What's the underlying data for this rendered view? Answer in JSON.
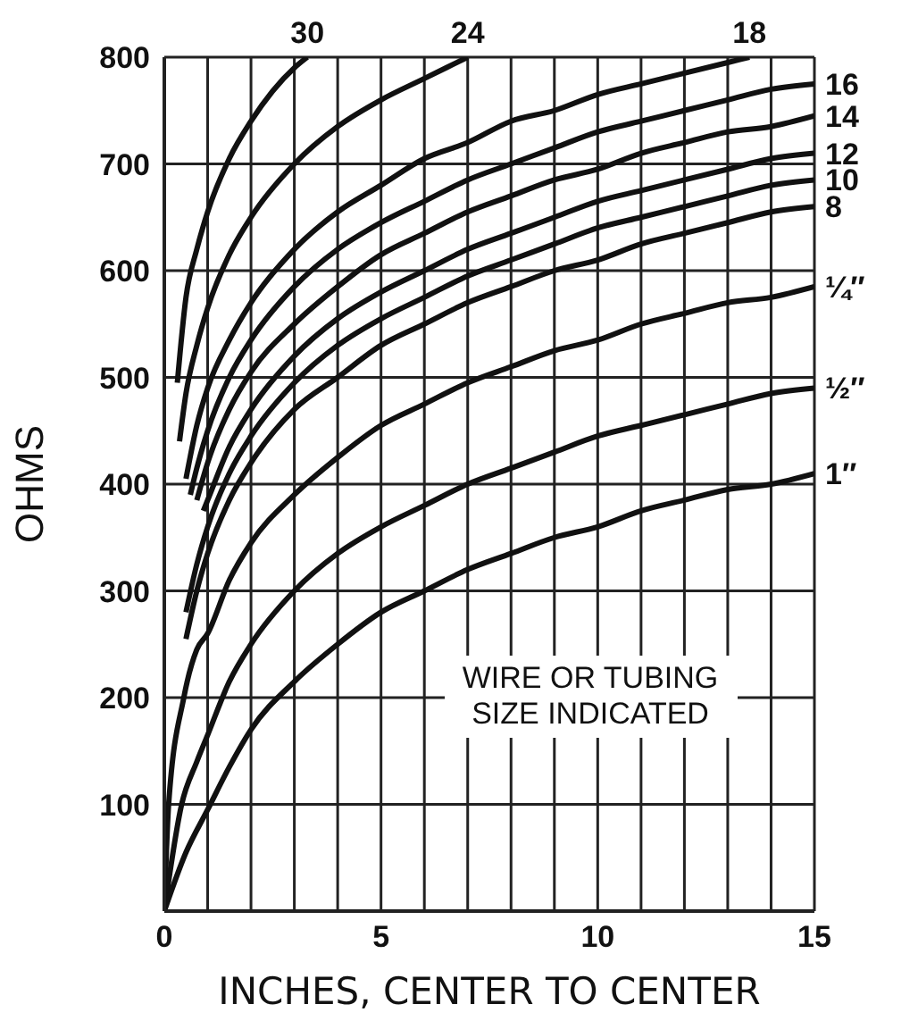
{
  "chart_data": {
    "type": "line",
    "xlabel": "INCHES, CENTER TO CENTER",
    "ylabel": "OHMS",
    "xlim": [
      0,
      15
    ],
    "ylim": [
      0,
      800
    ],
    "xticks": [
      0,
      {
        "value": 1,
        "label": null
      },
      {
        "value": 2,
        "label": null
      },
      {
        "value": 3,
        "label": null
      },
      {
        "value": 4,
        "label": null
      },
      5,
      {
        "value": 6,
        "label": null
      },
      {
        "value": 7,
        "label": null
      },
      {
        "value": 8,
        "label": null
      },
      {
        "value": 9,
        "label": null
      },
      10,
      {
        "value": 11,
        "label": null
      },
      {
        "value": 12,
        "label": null
      },
      {
        "value": 13,
        "label": null
      },
      {
        "value": 14,
        "label": null
      },
      15
    ],
    "yticks": [
      {
        "value": 0,
        "label": null
      },
      100,
      200,
      300,
      400,
      500,
      600,
      700,
      800
    ],
    "grid": true,
    "legend": false,
    "marker": "none",
    "line_style": "solid",
    "annotations": [
      "WIRE OR TUBING SIZE INDICATED"
    ],
    "series": [
      {
        "name": "30",
        "color": "#111111",
        "x": [
          0.3,
          0.5,
          0.75,
          1,
          1.5,
          2,
          3,
          3.3
        ],
        "values": [
          495,
          575,
          620,
          655,
          705,
          740,
          790,
          800
        ]
      },
      {
        "name": "24",
        "color": "#111111",
        "x": [
          0.35,
          0.5,
          0.75,
          1,
          1.5,
          2,
          3,
          4,
          5,
          6,
          7
        ],
        "values": [
          440,
          485,
          530,
          565,
          615,
          650,
          700,
          735,
          760,
          780,
          800
        ]
      },
      {
        "name": "18",
        "color": "#111111",
        "x": [
          0.5,
          0.75,
          1,
          1.5,
          2,
          3,
          4,
          5,
          6,
          7,
          8,
          9,
          10,
          11,
          12,
          13,
          13.5
        ],
        "values": [
          405,
          455,
          490,
          535,
          570,
          620,
          655,
          680,
          705,
          720,
          740,
          750,
          765,
          775,
          785,
          795,
          800
        ]
      },
      {
        "name": "16",
        "color": "#111111",
        "x": [
          0.6,
          0.75,
          1,
          1.5,
          2,
          3,
          4,
          5,
          6,
          7,
          8,
          9,
          10,
          11,
          12,
          13,
          14,
          15
        ],
        "values": [
          390,
          415,
          450,
          500,
          535,
          585,
          620,
          645,
          665,
          685,
          700,
          715,
          730,
          740,
          750,
          760,
          770,
          775
        ]
      },
      {
        "name": "14",
        "color": "#111111",
        "x": [
          0.75,
          1,
          1.5,
          2,
          3,
          4,
          5,
          6,
          7,
          8,
          9,
          10,
          11,
          12,
          13,
          14,
          15
        ],
        "values": [
          385,
          420,
          470,
          505,
          550,
          585,
          615,
          635,
          655,
          670,
          685,
          695,
          710,
          720,
          730,
          735,
          745
        ]
      },
      {
        "name": "12",
        "color": "#111111",
        "x": [
          0.9,
          1,
          1.5,
          2,
          3,
          4,
          5,
          6,
          7,
          8,
          9,
          10,
          11,
          12,
          13,
          14,
          15
        ],
        "values": [
          375,
          385,
          435,
          470,
          520,
          555,
          580,
          600,
          620,
          635,
          650,
          665,
          675,
          685,
          695,
          705,
          710
        ]
      },
      {
        "name": "10",
        "color": "#111111",
        "x": [
          0.5,
          0.75,
          1,
          1.5,
          2,
          3,
          4,
          5,
          6,
          7,
          8,
          9,
          10,
          11,
          12,
          13,
          14,
          15
        ],
        "values": [
          280,
          325,
          360,
          410,
          445,
          495,
          530,
          555,
          575,
          595,
          610,
          625,
          640,
          650,
          660,
          670,
          680,
          685
        ]
      },
      {
        "name": "8",
        "color": "#111111",
        "x": [
          0.5,
          0.75,
          1,
          1.5,
          2,
          3,
          4,
          5,
          6,
          7,
          8,
          9,
          10,
          11,
          12,
          13,
          14,
          15
        ],
        "values": [
          255,
          300,
          335,
          385,
          420,
          470,
          500,
          530,
          550,
          570,
          585,
          600,
          610,
          625,
          635,
          645,
          655,
          660
        ]
      },
      {
        "name": "¼″",
        "color": "#111111",
        "x": [
          0,
          0.1,
          0.45,
          0.75,
          1,
          1.5,
          2,
          3,
          4,
          5,
          6,
          7,
          8,
          9,
          10,
          11,
          12,
          13,
          14,
          15
        ],
        "values": [
          0,
          100,
          200,
          245,
          260,
          310,
          345,
          390,
          425,
          455,
          475,
          495,
          510,
          525,
          535,
          550,
          560,
          570,
          575,
          585
        ]
      },
      {
        "name": "½″",
        "color": "#111111",
        "x": [
          0,
          0.4,
          0.75,
          1,
          1.5,
          2,
          3,
          4,
          5,
          6,
          7,
          8,
          9,
          10,
          11,
          12,
          13,
          14,
          15
        ],
        "values": [
          0,
          100,
          140,
          165,
          215,
          250,
          300,
          335,
          360,
          380,
          400,
          415,
          430,
          445,
          455,
          465,
          475,
          485,
          490
        ]
      },
      {
        "name": "1″",
        "color": "#111111",
        "x": [
          0,
          0.5,
          1,
          1.5,
          2,
          3,
          4,
          5,
          6,
          7,
          8,
          9,
          10,
          11,
          12,
          13,
          14,
          15
        ],
        "values": [
          0,
          55,
          95,
          135,
          170,
          215,
          250,
          280,
          300,
          320,
          335,
          350,
          360,
          375,
          385,
          395,
          400,
          410
        ]
      }
    ]
  }
}
